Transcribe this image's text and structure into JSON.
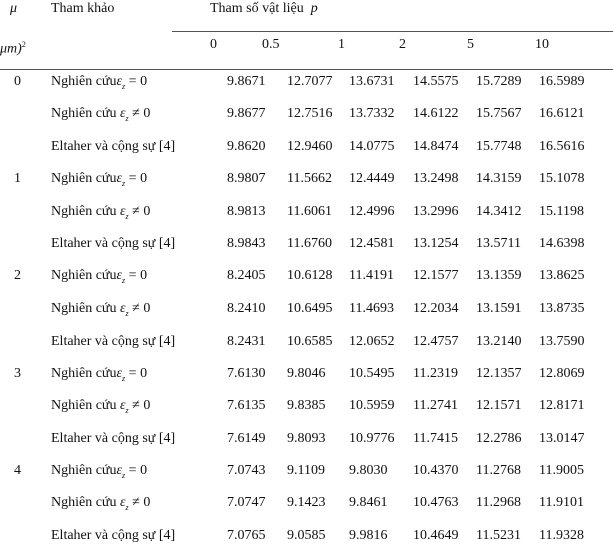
{
  "table": {
    "header": {
      "mu_symbol": "μ",
      "mu_unit": "μm)",
      "mu_unit_sup": "2",
      "reference_label": "Tham khảo",
      "param_label": "Tham số vật liệu",
      "param_symbol": "p",
      "p_values": [
        "0",
        "0.5",
        "1",
        "2",
        "5",
        "10"
      ]
    },
    "ref_labels": {
      "study_prefix": "Nghiên cứu",
      "eps_symbol": "ε",
      "eps_sub": "z",
      "eq_zero": "= 0",
      "neq_zero": "≠ 0",
      "eltaher": "Eltaher và cộng sự [4]"
    },
    "groups": [
      {
        "mu": "0",
        "rows": [
          {
            "ref": "eq",
            "values": [
              "9.8671",
              "12.7077",
              "13.6731",
              "14.5575",
              "15.7289",
              "16.5989"
            ]
          },
          {
            "ref": "neq",
            "values": [
              "9.8677",
              "12.7516",
              "13.7332",
              "14.6122",
              "15.7567",
              "16.6121"
            ]
          },
          {
            "ref": "eltaher",
            "values": [
              "9.8620",
              "12.9460",
              "14.0775",
              "14.8474",
              "15.7748",
              "16.5616"
            ]
          }
        ]
      },
      {
        "mu": "1",
        "rows": [
          {
            "ref": "eq",
            "values": [
              "8.9807",
              "11.5662",
              "12.4449",
              "13.2498",
              "14.3159",
              "15.1078"
            ]
          },
          {
            "ref": "neq",
            "values": [
              "8.9813",
              "11.6061",
              "12.4996",
              "13.2996",
              "14.3412",
              "15.1198"
            ]
          },
          {
            "ref": "eltaher",
            "values": [
              "8.9843",
              "11.6760",
              "12.4581",
              "13.1254",
              "13.5711",
              "14.6398"
            ]
          }
        ]
      },
      {
        "mu": "2",
        "rows": [
          {
            "ref": "eq",
            "values": [
              "8.2405",
              "10.6128",
              "11.4191",
              "12.1577",
              "13.1359",
              "13.8625"
            ]
          },
          {
            "ref": "neq",
            "values": [
              "8.2410",
              "10.6495",
              "11.4693",
              "12.2034",
              "13.1591",
              "13.8735"
            ]
          },
          {
            "ref": "eltaher",
            "values": [
              "8.2431",
              "10.6585",
              "12.0652",
              "12.4757",
              "13.2140",
              "13.7590"
            ]
          }
        ]
      },
      {
        "mu": "3",
        "rows": [
          {
            "ref": "eq",
            "values": [
              "7.6130",
              "9.8046",
              "10.5495",
              "11.2319",
              "12.1357",
              "12.8069"
            ]
          },
          {
            "ref": "neq",
            "values": [
              "7.6135",
              "9.8385",
              "10.5959",
              "11.2741",
              "12.1571",
              "12.8171"
            ]
          },
          {
            "ref": "eltaher",
            "values": [
              "7.6149",
              "9.8093",
              "10.9776",
              "11.7415",
              "12.2786",
              "13.0147"
            ]
          }
        ]
      },
      {
        "mu": "4",
        "rows": [
          {
            "ref": "eq",
            "values": [
              "7.0743",
              "9.1109",
              "9.8030",
              "10.4370",
              "11.2768",
              "11.9005"
            ]
          },
          {
            "ref": "neq",
            "values": [
              "7.0747",
              "9.1423",
              "9.8461",
              "10.4763",
              "11.2968",
              "11.9101"
            ]
          },
          {
            "ref": "eltaher",
            "values": [
              "7.0765",
              "9.0585",
              "9.9816",
              "10.4649",
              "11.5231",
              "11.9328"
            ]
          }
        ]
      }
    ]
  }
}
